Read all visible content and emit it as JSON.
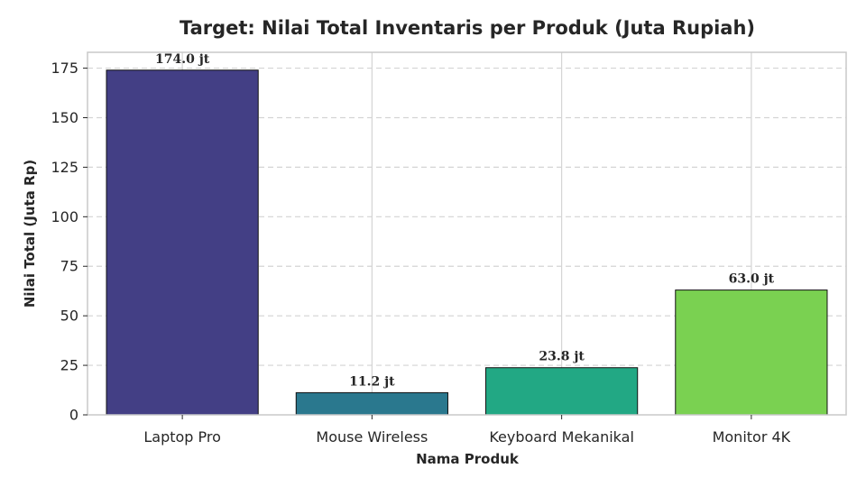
{
  "chart_data": {
    "type": "bar",
    "title": "Target: Nilai Total Inventaris per Produk (Juta Rupiah)",
    "xlabel": "Nama Produk",
    "ylabel": "Nilai Total (Juta Rp)",
    "categories": [
      "Laptop Pro",
      "Mouse Wireless",
      "Keyboard Mekanikal",
      "Monitor 4K"
    ],
    "values": [
      174.0,
      11.2,
      23.8,
      63.0
    ],
    "data_labels": [
      "174.0 jt",
      "11.2 jt",
      "23.8 jt",
      "63.0 jt"
    ],
    "colors": [
      "#433f85",
      "#2a788e",
      "#22a884",
      "#7ad151"
    ],
    "ylim": [
      0,
      183
    ],
    "yticks": [
      0,
      25,
      50,
      75,
      100,
      125,
      150,
      175
    ],
    "grid": true,
    "legend": "none"
  }
}
